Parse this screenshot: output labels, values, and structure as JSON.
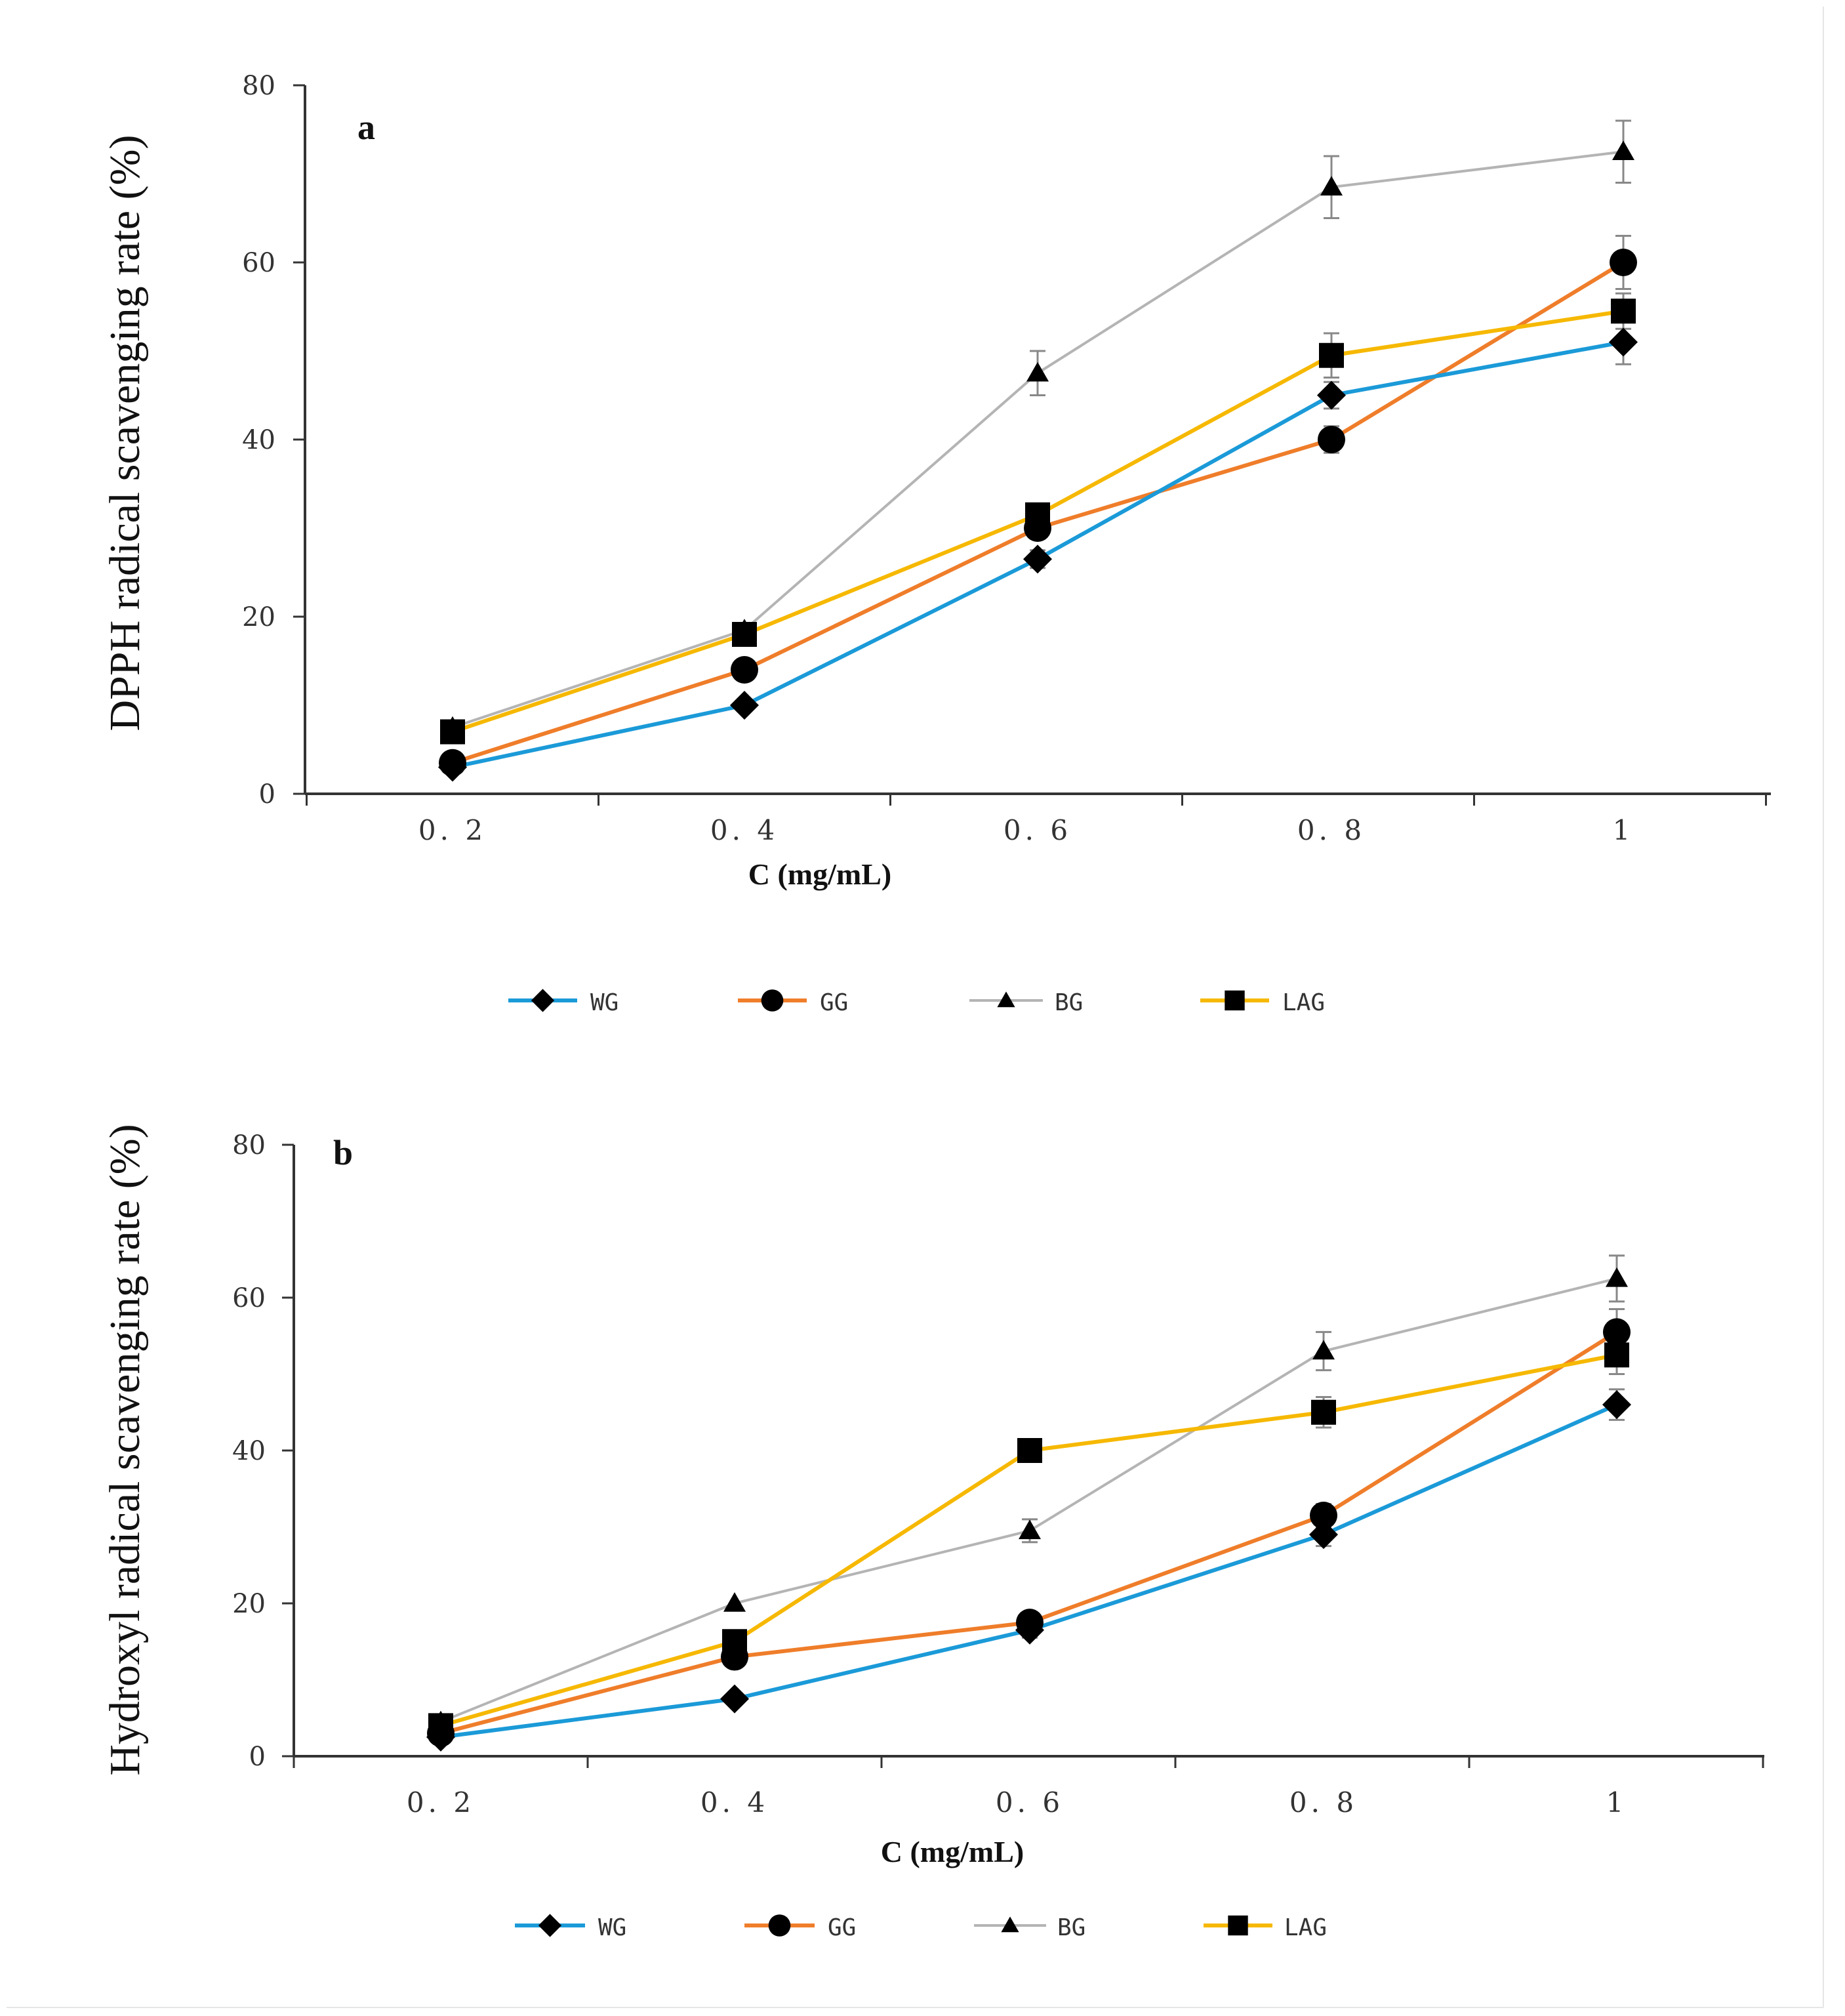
{
  "colors": {
    "WG": "#1b9ad8",
    "GG": "#ef7d2a",
    "BG": "#b4b4b4",
    "LAG": "#f6b800",
    "axis": "#333333",
    "error": "#888888"
  },
  "legend": [
    {
      "key": "WG",
      "label": "WG",
      "marker": "diamond"
    },
    {
      "key": "GG",
      "label": "GG",
      "marker": "circle"
    },
    {
      "key": "BG",
      "label": "BG",
      "marker": "triangle"
    },
    {
      "key": "LAG",
      "label": "LAG",
      "marker": "square"
    }
  ],
  "chart_data": [
    {
      "type": "line",
      "panel_label": "a",
      "title": "",
      "xlabel": "C (mg/mL)",
      "ylabel": "DPPH radical scavenging rate (%)",
      "categories": [
        "0. 2",
        "0. 4",
        "0. 6",
        "0. 8",
        "1"
      ],
      "y_ticks": [
        "0",
        "20",
        "40",
        "60",
        "80"
      ],
      "ylim": [
        0,
        80
      ],
      "series": [
        {
          "key": "WG",
          "name": "WG",
          "marker": "diamond",
          "values": [
            3,
            10,
            26.5,
            45,
            51
          ],
          "errors": [
            0.5,
            0.5,
            1,
            1.5,
            2.5
          ]
        },
        {
          "key": "GG",
          "name": "GG",
          "marker": "circle",
          "values": [
            3.5,
            14,
            30,
            40,
            60
          ],
          "errors": [
            0.5,
            0.5,
            1,
            1.5,
            3
          ]
        },
        {
          "key": "BG",
          "name": "BG",
          "marker": "triangle",
          "values": [
            7.5,
            18.5,
            47.5,
            68.5,
            72.5
          ],
          "errors": [
            0.5,
            0.5,
            2.5,
            3.5,
            3.5
          ]
        },
        {
          "key": "LAG",
          "name": "LAG",
          "marker": "square",
          "values": [
            7,
            18,
            31.5,
            49.5,
            54.5
          ],
          "errors": [
            0.5,
            0.5,
            1,
            2.5,
            2
          ]
        }
      ]
    },
    {
      "type": "line",
      "panel_label": "b",
      "title": "",
      "xlabel": "C (mg/mL)",
      "ylabel": "Hydroxyl radical scavenging rate (%)",
      "categories": [
        "0. 2",
        "0. 4",
        "0. 6",
        "0. 8",
        "1"
      ],
      "y_ticks": [
        "0",
        "20",
        "40",
        "60",
        "80"
      ],
      "ylim": [
        0,
        80
      ],
      "series": [
        {
          "key": "WG",
          "name": "WG",
          "marker": "diamond",
          "values": [
            2.5,
            7.5,
            16.5,
            29,
            46
          ],
          "errors": [
            0.5,
            0.5,
            1,
            1.5,
            2
          ]
        },
        {
          "key": "GG",
          "name": "GG",
          "marker": "circle",
          "values": [
            3,
            13,
            17.5,
            31.5,
            55.5
          ],
          "errors": [
            0.5,
            0.5,
            1,
            1.5,
            3
          ]
        },
        {
          "key": "BG",
          "name": "BG",
          "marker": "triangle",
          "values": [
            4.5,
            20,
            29.5,
            53,
            62.5
          ],
          "errors": [
            0.5,
            0.5,
            1.5,
            2.5,
            3
          ]
        },
        {
          "key": "LAG",
          "name": "LAG",
          "marker": "square",
          "values": [
            4,
            15,
            40,
            45,
            52.5
          ],
          "errors": [
            0.5,
            0.5,
            1.5,
            2,
            2.5
          ]
        }
      ]
    }
  ]
}
